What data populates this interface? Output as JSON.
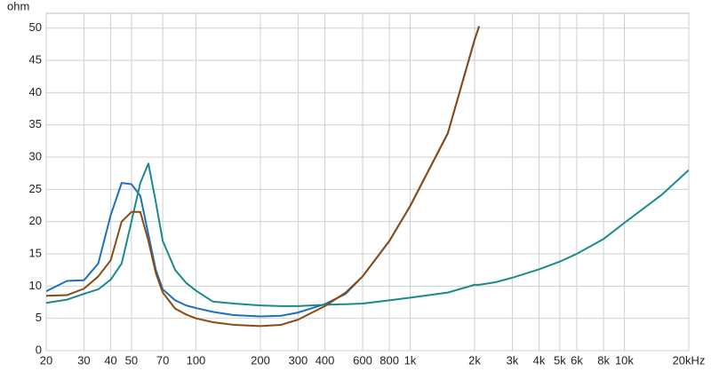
{
  "chart_data": {
    "type": "line",
    "y_label": "ohm",
    "x": [
      20,
      25,
      30,
      35,
      40,
      45,
      50,
      55,
      60,
      65,
      70,
      80,
      90,
      100,
      120,
      150,
      200,
      250,
      300,
      400,
      500,
      600,
      800,
      1000,
      1500,
      2000,
      2100,
      2500,
      3000,
      4000,
      5000,
      6000,
      8000,
      10000,
      15000,
      20000
    ],
    "series": [
      {
        "color": "#1f6fbf",
        "values": [
          9.2,
          10.8,
          10.9,
          13.5,
          21,
          26,
          25.8,
          24,
          18,
          12.5,
          9.5,
          7.8,
          7,
          6.6,
          6,
          5.5,
          5.3,
          5.4,
          5.9,
          7.2,
          8.8,
          11.5,
          17,
          22.4,
          33.7,
          48.2,
          50.3,
          null,
          null,
          null,
          null,
          null,
          null,
          null,
          null,
          null
        ]
      },
      {
        "color": "#1a8a8a",
        "values": [
          7.4,
          7.9,
          8.8,
          9.5,
          11,
          13.5,
          20,
          26,
          29,
          23,
          17,
          12.5,
          10.5,
          9.3,
          7.6,
          7.3,
          7,
          6.9,
          6.9,
          7.1,
          7.2,
          7.3,
          7.8,
          8.2,
          9,
          10.2,
          10.2,
          10.6,
          11.3,
          12.6,
          13.8,
          15,
          17.3,
          19.8,
          24.2,
          28
        ]
      },
      {
        "color": "#8b4a12",
        "values": [
          8.5,
          8.6,
          9.6,
          11.5,
          14,
          20,
          21.5,
          21.5,
          17,
          12,
          9,
          6.5,
          5.6,
          5,
          4.4,
          4,
          3.8,
          4,
          4.8,
          6.9,
          9,
          11.5,
          17,
          22.4,
          33.7,
          48.2,
          50.3,
          null,
          null,
          null,
          null,
          null,
          null,
          null,
          null,
          null
        ]
      }
    ],
    "xlim": [
      20,
      20000
    ],
    "x_log": true,
    "xticks": [
      20,
      30,
      40,
      50,
      70,
      100,
      200,
      300,
      400,
      600,
      800,
      {
        "value": 1000,
        "label": "1k"
      },
      {
        "value": 2000,
        "label": "2k"
      },
      {
        "value": 3000,
        "label": "3k"
      },
      {
        "value": 4000,
        "label": "4k"
      },
      {
        "value": 5000,
        "label": "5k"
      },
      {
        "value": 6000,
        "label": "6k"
      },
      {
        "value": 8000,
        "label": "8k"
      },
      {
        "value": 10000,
        "label": "10k"
      },
      {
        "value": 20000,
        "label": "20kHz"
      }
    ],
    "ylim": [
      0,
      52.3
    ],
    "yticks": [
      0,
      5,
      10,
      15,
      20,
      25,
      30,
      35,
      40,
      45,
      50
    ],
    "grid": true
  }
}
